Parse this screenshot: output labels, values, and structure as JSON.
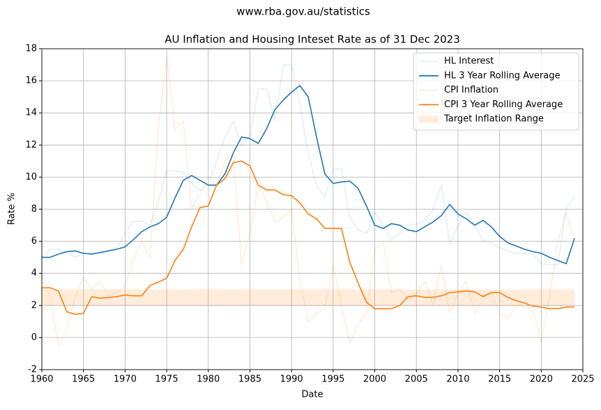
{
  "chart_data": {
    "type": "line",
    "suptitle": "www.rba.gov.au/statistics",
    "title": "AU Inflation and Housing Inteset Rate as of 31 Dec 2023",
    "xlabel": "Date",
    "ylabel": "Rate %",
    "x": [
      1960,
      1961,
      1962,
      1963,
      1964,
      1965,
      1966,
      1967,
      1968,
      1969,
      1970,
      1971,
      1972,
      1973,
      1974,
      1975,
      1976,
      1977,
      1978,
      1979,
      1980,
      1981,
      1982,
      1983,
      1984,
      1985,
      1986,
      1987,
      1988,
      1989,
      1990,
      1991,
      1992,
      1993,
      1994,
      1995,
      1996,
      1997,
      1998,
      1999,
      2000,
      2001,
      2002,
      2003,
      2004,
      2005,
      2006,
      2007,
      2008,
      2009,
      2010,
      2011,
      2012,
      2013,
      2014,
      2015,
      2016,
      2017,
      2018,
      2019,
      2020,
      2021,
      2022,
      2023,
      2024
    ],
    "series": [
      {
        "name": "HL Interest",
        "color": "#1f77b4",
        "alpha": 0.12,
        "values": [
          5.0,
          5.5,
          5.5,
          5.25,
          5.0,
          5.25,
          5.25,
          5.25,
          5.4,
          5.6,
          6.5,
          7.25,
          7.25,
          7.0,
          8.5,
          10.4,
          10.4,
          10.3,
          9.6,
          9.2,
          9.5,
          11.0,
          12.5,
          13.5,
          12.0,
          12.5,
          15.5,
          15.5,
          13.5,
          17.0,
          17.0,
          14.5,
          11.5,
          9.5,
          8.75,
          10.5,
          10.5,
          7.5,
          6.7,
          6.5,
          7.8,
          7.0,
          6.1,
          6.5,
          7.05,
          7.05,
          7.3,
          8.0,
          9.5,
          5.8,
          7.0,
          7.8,
          7.0,
          6.0,
          5.9,
          5.6,
          5.4,
          5.25,
          5.25,
          5.2,
          4.6,
          4.55,
          4.55,
          8.0,
          8.8
        ]
      },
      {
        "name": "HL 3 Year Rolling Average",
        "color": "#1f77b4",
        "alpha": 1,
        "values": [
          5.0,
          5.0,
          5.2,
          5.35,
          5.4,
          5.25,
          5.2,
          5.3,
          5.4,
          5.5,
          5.65,
          6.1,
          6.6,
          6.9,
          7.1,
          7.5,
          8.7,
          9.8,
          10.1,
          9.8,
          9.5,
          9.5,
          10.2,
          11.5,
          12.5,
          12.4,
          12.1,
          13.0,
          14.2,
          14.8,
          15.3,
          15.7,
          15.0,
          12.5,
          10.2,
          9.6,
          9.7,
          9.75,
          9.3,
          8.2,
          7.0,
          6.8,
          7.1,
          7.0,
          6.7,
          6.6,
          6.9,
          7.2,
          7.6,
          8.3,
          7.7,
          7.4,
          7.0,
          7.3,
          6.9,
          6.3,
          5.9,
          5.7,
          5.5,
          5.35,
          5.25,
          5.0,
          4.8,
          4.6,
          6.2
        ]
      },
      {
        "name": "CPI Inflation",
        "color": "#ff7f0e",
        "alpha": 0.15,
        "values": [
          4.0,
          2.5,
          -0.5,
          0.5,
          2.5,
          3.8,
          3.0,
          3.5,
          2.6,
          2.8,
          3.2,
          4.8,
          6.0,
          5.0,
          13.0,
          17.5,
          13.0,
          13.5,
          8.0,
          9.0,
          10.0,
          9.5,
          11.0,
          11.5,
          4.5,
          6.5,
          9.5,
          8.5,
          7.2,
          7.5,
          8.0,
          3.5,
          1.0,
          1.5,
          1.8,
          4.5,
          2.0,
          -0.3,
          0.8,
          1.5,
          5.5,
          6.0,
          2.8,
          3.0,
          2.4,
          2.7,
          3.5,
          2.0,
          4.5,
          1.5,
          2.8,
          3.5,
          1.5,
          2.5,
          2.8,
          1.5,
          1.2,
          2.0,
          1.9,
          1.8,
          -0.3,
          2.5,
          6.0,
          7.8,
          6.0
        ]
      },
      {
        "name": "CPI 3 Year Rolling Average",
        "color": "#ff7f0e",
        "alpha": 1,
        "values": [
          3.1,
          3.1,
          2.9,
          1.6,
          1.45,
          1.5,
          2.55,
          2.45,
          2.5,
          2.55,
          2.65,
          2.6,
          2.6,
          3.25,
          3.45,
          3.7,
          4.8,
          5.5,
          6.9,
          8.1,
          8.2,
          9.5,
          9.9,
          10.9,
          11.0,
          10.7,
          9.5,
          9.2,
          9.2,
          8.9,
          8.85,
          8.4,
          7.7,
          7.4,
          6.8,
          6.8,
          6.8,
          4.7,
          3.4,
          2.2,
          1.8,
          1.8,
          1.8,
          2.0,
          2.55,
          2.6,
          2.5,
          2.5,
          2.6,
          2.8,
          2.85,
          2.9,
          2.85,
          2.55,
          2.8,
          2.8,
          2.5,
          2.3,
          2.15,
          1.95,
          1.9,
          1.8,
          1.8,
          1.9,
          1.9
        ]
      }
    ],
    "band": {
      "name": "Target Inflation Range",
      "color": "#ff7f0e",
      "alpha": 0.15,
      "x": [
        1960,
        2024
      ],
      "low": 2,
      "high": 3
    },
    "xlim": [
      1960,
      2025
    ],
    "xticks": [
      1960,
      1965,
      1970,
      1975,
      1980,
      1985,
      1990,
      1995,
      2000,
      2005,
      2010,
      2015,
      2020,
      2025
    ],
    "ylim": [
      -2,
      18
    ],
    "yticks": [
      -2,
      0,
      2,
      4,
      6,
      8,
      10,
      12,
      14,
      16,
      18
    ],
    "grid": true,
    "legend": "upper right"
  }
}
